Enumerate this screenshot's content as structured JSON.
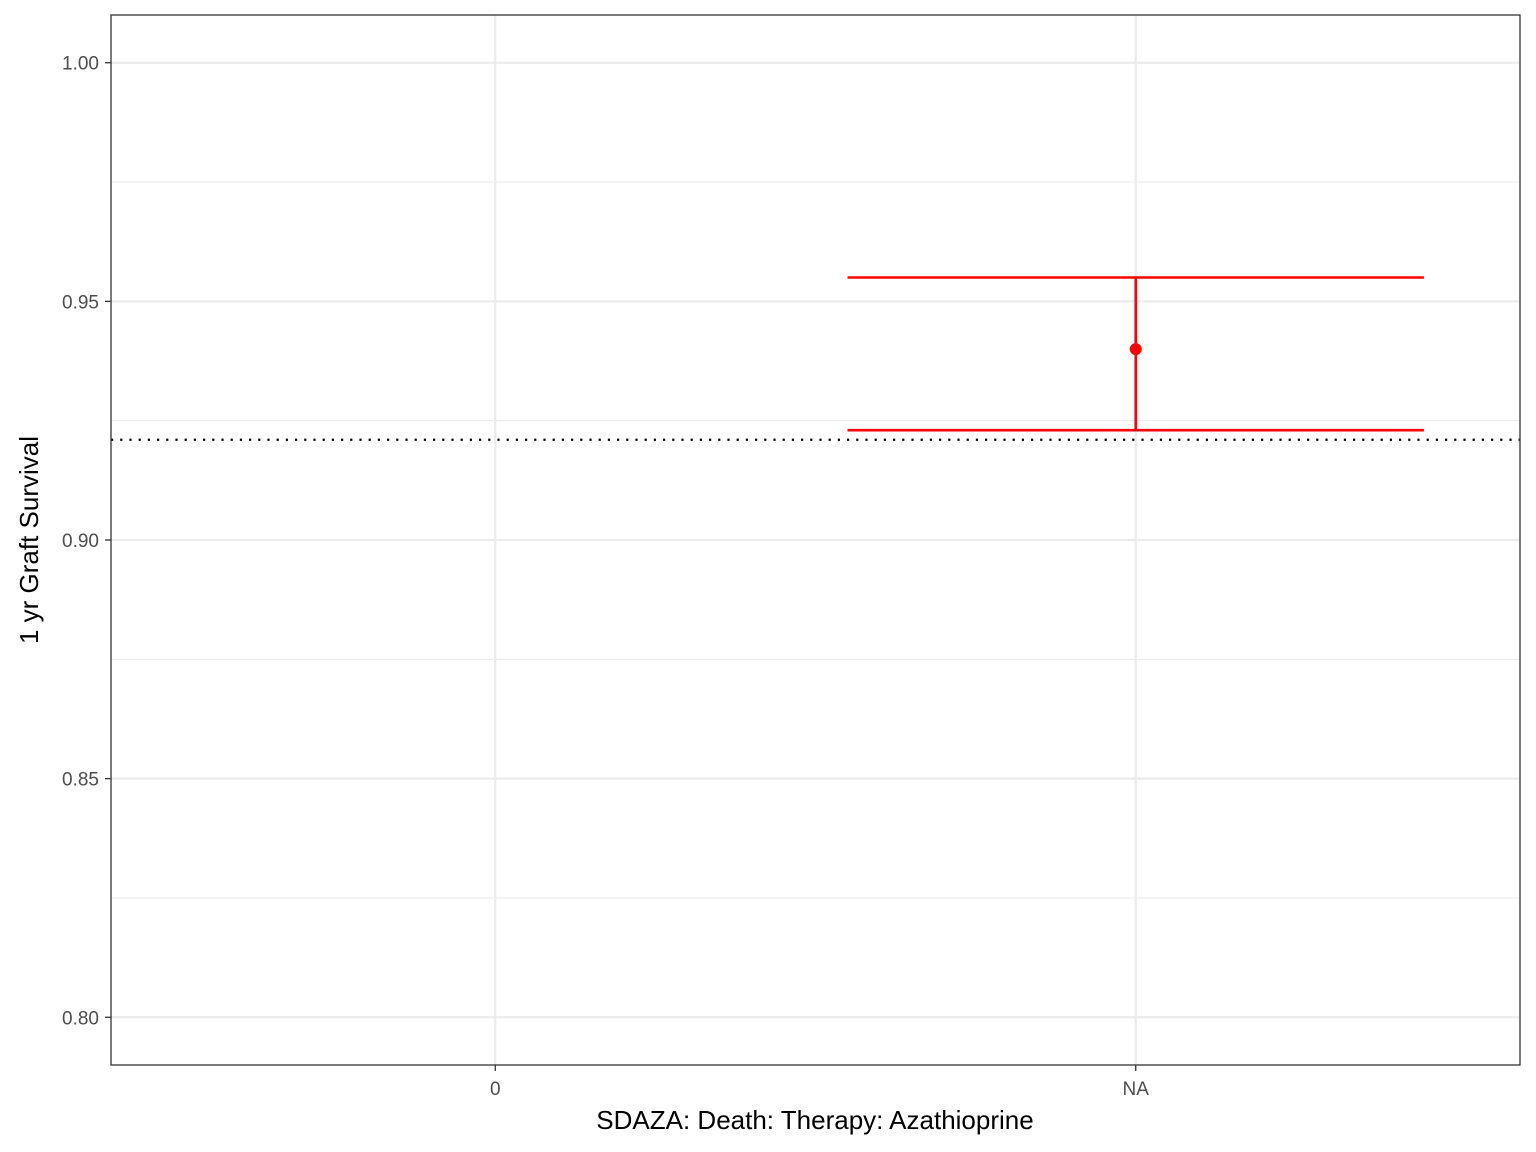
{
  "chart_data": {
    "type": "errorbar",
    "title": "",
    "xlabel": "SDAZA: Death: Therapy: Azathioprine",
    "ylabel": "1 yr Graft Survival",
    "categories": [
      "0",
      "NA"
    ],
    "ylim": [
      0.79,
      1.01
    ],
    "yticks": [
      0.8,
      0.85,
      0.9,
      0.95,
      1.0
    ],
    "ytick_labels": [
      "0.80",
      "0.85",
      "0.90",
      "0.95",
      "1.00"
    ],
    "series": [
      {
        "category": "NA",
        "estimate": 0.94,
        "lower": 0.923,
        "upper": 0.955
      }
    ],
    "reference_line": {
      "y": 0.921,
      "style": "dotted"
    },
    "grid": true,
    "colors": {
      "point": "#ff0000",
      "errorbar": "#ff0000",
      "reference": "#000000",
      "grid": "#ebebeb",
      "panel_border": "#333333"
    }
  }
}
